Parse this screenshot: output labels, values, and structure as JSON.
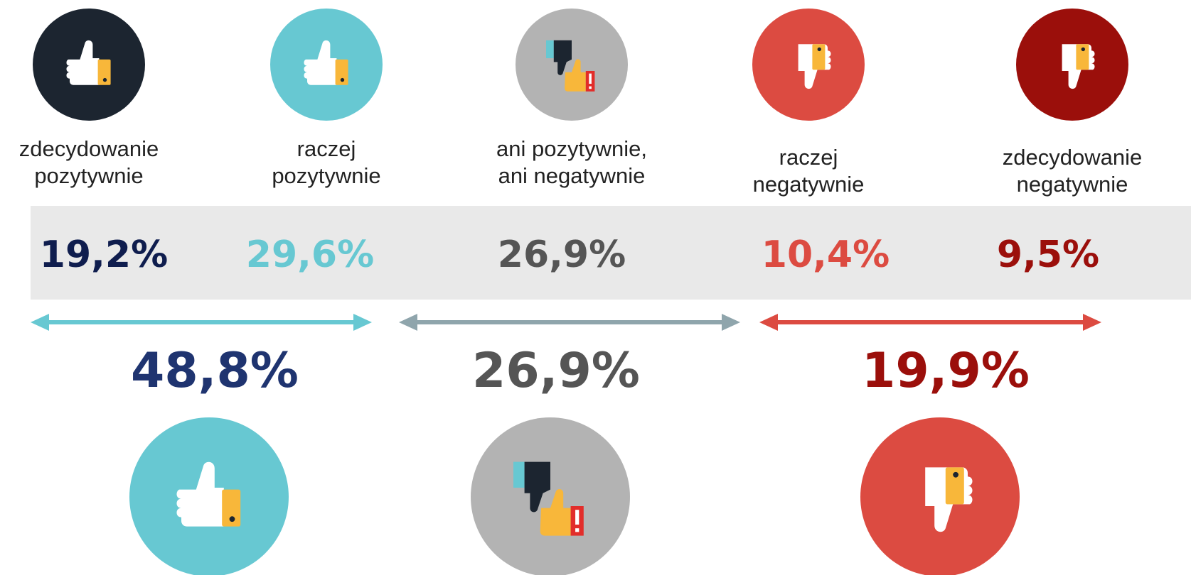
{
  "items": [
    {
      "label": [
        "zdecydowanie",
        "pozytywnie"
      ],
      "value": "19,2%"
    },
    {
      "label": [
        "raczej",
        "pozytywnie"
      ],
      "value": "29,6%"
    },
    {
      "label": [
        "ani pozytywnie,",
        "ani negatywnie"
      ],
      "value": "26,9%"
    },
    {
      "label": [
        "raczej",
        "negatywnie"
      ],
      "value": "10,4%"
    },
    {
      "label": [
        "zdecydowanie",
        "negatywnie"
      ],
      "value": "9,5%"
    }
  ],
  "groups": [
    {
      "value": "48,8%"
    },
    {
      "value": "26,9%"
    },
    {
      "value": "19,9%"
    }
  ]
}
